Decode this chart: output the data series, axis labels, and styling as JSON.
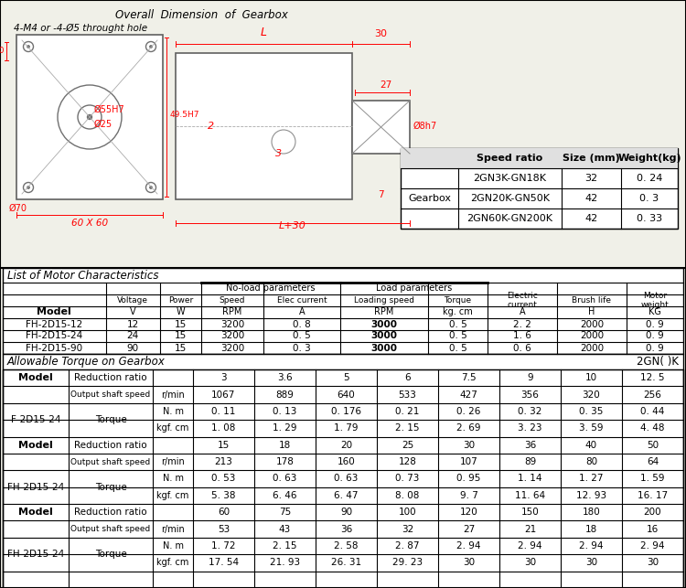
{
  "bg_color": "#f0f0e8",
  "title_diagram": "Overall  Dimension  of  Gearbox",
  "subtitle_diagram": "4-M4 or -4-Ø5 throught hole",
  "gearbox_table": {
    "headers": [
      "",
      "Speed ratio",
      "Size (mm)",
      "Weight(kg)"
    ],
    "row_label": "Gearbox",
    "rows": [
      [
        "2GN3K-GN18K",
        "32",
        "0. 24"
      ],
      [
        "2GN20K-GN50K",
        "42",
        "0. 3"
      ],
      [
        "2GN60K-GN200K",
        "42",
        "0. 33"
      ]
    ]
  },
  "motor_title": "List of Motor Characteristics",
  "motor_table": {
    "rows": [
      [
        "FH-2D15-12",
        "12",
        "15",
        "3200",
        "0. 8",
        "3000",
        "0. 5",
        "2. 2",
        "2000",
        "0. 9"
      ],
      [
        "FH-2D15-24",
        "24",
        "15",
        "3200",
        "0. 5",
        "3000",
        "0. 5",
        "1. 6",
        "2000",
        "0. 9"
      ],
      [
        "FH-2D15-90",
        "90",
        "15",
        "3200",
        "0. 3",
        "3000",
        "0. 5",
        "0. 6",
        "2000",
        "0. 9"
      ]
    ]
  },
  "torque_title": "Allowable Torque on Gearbox",
  "torque_subtitle": "2GN( )K",
  "torque_sections": [
    {
      "model": "F-2D15-24",
      "reduction_ratios": [
        "3",
        "3.6",
        "5",
        "6",
        "7.5",
        "9",
        "10",
        "12. 5"
      ],
      "output_shaft_speed": [
        "1067",
        "889",
        "640",
        "533",
        "427",
        "356",
        "320",
        "256"
      ],
      "torque_nm": [
        "0. 11",
        "0. 13",
        "0. 176",
        "0. 21",
        "0. 26",
        "0. 32",
        "0. 35",
        "0. 44"
      ],
      "torque_kgf": [
        "1. 08",
        "1. 29",
        "1. 79",
        "2. 15",
        "2. 69",
        "3. 23",
        "3. 59",
        "4. 48"
      ]
    },
    {
      "model": "FH-2D15-24",
      "reduction_ratios": [
        "15",
        "18",
        "20",
        "25",
        "30",
        "36",
        "40",
        "50"
      ],
      "output_shaft_speed": [
        "213",
        "178",
        "160",
        "128",
        "107",
        "89",
        "80",
        "64"
      ],
      "torque_nm": [
        "0. 53",
        "0. 63",
        "0. 63",
        "0. 73",
        "0. 95",
        "1. 14",
        "1. 27",
        "1. 59"
      ],
      "torque_kgf": [
        "5. 38",
        "6. 46",
        "6. 47",
        "8. 08",
        "9. 7",
        "11. 64",
        "12. 93",
        "16. 17"
      ]
    },
    {
      "model": "FH-2D15-24",
      "reduction_ratios": [
        "60",
        "75",
        "90",
        "100",
        "120",
        "150",
        "180",
        "200"
      ],
      "output_shaft_speed": [
        "53",
        "43",
        "36",
        "32",
        "27",
        "21",
        "18",
        "16"
      ],
      "torque_nm": [
        "1. 72",
        "2. 15",
        "2. 58",
        "2. 87",
        "2. 94",
        "2. 94",
        "2. 94",
        "2. 94"
      ],
      "torque_kgf": [
        "17. 54",
        "21. 93",
        "26. 31",
        "29. 23",
        "30",
        "30",
        "30",
        "30"
      ]
    }
  ]
}
